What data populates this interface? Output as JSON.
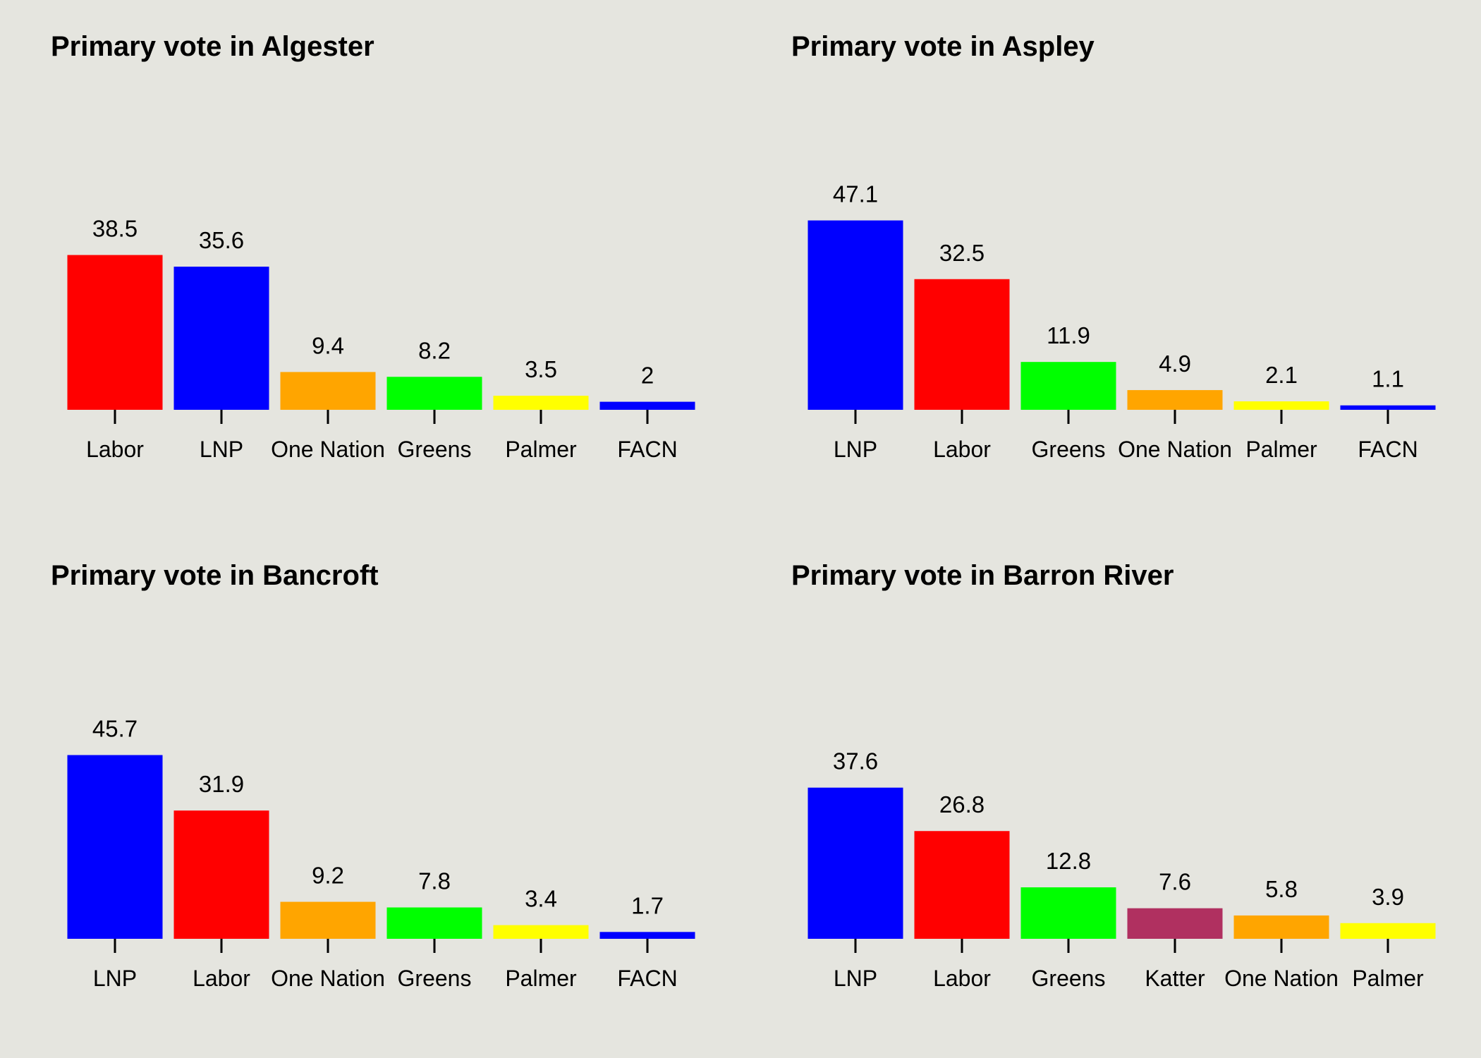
{
  "chart_data": [
    {
      "type": "bar",
      "title": "Primary vote in Algester",
      "xlabel": "",
      "ylabel": "",
      "ylim": [
        0,
        60
      ],
      "grid": false,
      "categories": [
        "Labor",
        "LNP",
        "One Nation",
        "Greens",
        "Palmer",
        "FACN"
      ],
      "values": [
        38.5,
        35.6,
        9.4,
        8.2,
        3.5,
        2
      ],
      "value_labels": [
        "38.5",
        "35.6",
        "9.4",
        "8.2",
        "3.5",
        "2"
      ],
      "colors": [
        "#ff0000",
        "#0000ff",
        "#ffa500",
        "#00ff00",
        "#ffff00",
        "#0000ff"
      ]
    },
    {
      "type": "bar",
      "title": "Primary vote in Aspley",
      "xlabel": "",
      "ylabel": "",
      "ylim": [
        0,
        60
      ],
      "grid": false,
      "categories": [
        "LNP",
        "Labor",
        "Greens",
        "One Nation",
        "Palmer",
        "FACN"
      ],
      "values": [
        47.1,
        32.5,
        11.9,
        4.9,
        2.1,
        1.1
      ],
      "value_labels": [
        "47.1",
        "32.5",
        "11.9",
        "4.9",
        "2.1",
        "1.1"
      ],
      "colors": [
        "#0000ff",
        "#ff0000",
        "#00ff00",
        "#ffa500",
        "#ffff00",
        "#0000ff"
      ]
    },
    {
      "type": "bar",
      "title": "Primary vote in Bancroft",
      "xlabel": "",
      "ylabel": "",
      "ylim": [
        0,
        60
      ],
      "grid": false,
      "categories": [
        "LNP",
        "Labor",
        "One Nation",
        "Greens",
        "Palmer",
        "FACN"
      ],
      "values": [
        45.7,
        31.9,
        9.2,
        7.8,
        3.4,
        1.7
      ],
      "value_labels": [
        "45.7",
        "31.9",
        "9.2",
        "7.8",
        "3.4",
        "1.7"
      ],
      "colors": [
        "#0000ff",
        "#ff0000",
        "#ffa500",
        "#00ff00",
        "#ffff00",
        "#0000ff"
      ]
    },
    {
      "type": "bar",
      "title": "Primary vote in Barron River",
      "xlabel": "",
      "ylabel": "",
      "ylim": [
        0,
        60
      ],
      "grid": false,
      "categories": [
        "LNP",
        "Labor",
        "Greens",
        "Katter",
        "One Nation",
        "Palmer"
      ],
      "values": [
        37.6,
        26.8,
        12.8,
        7.6,
        5.8,
        3.9
      ],
      "value_labels": [
        "37.6",
        "26.8",
        "12.8",
        "7.6",
        "5.8",
        "3.9"
      ],
      "colors": [
        "#0000ff",
        "#ff0000",
        "#00ff00",
        "#b03060",
        "#ffa500",
        "#ffff00"
      ]
    }
  ]
}
